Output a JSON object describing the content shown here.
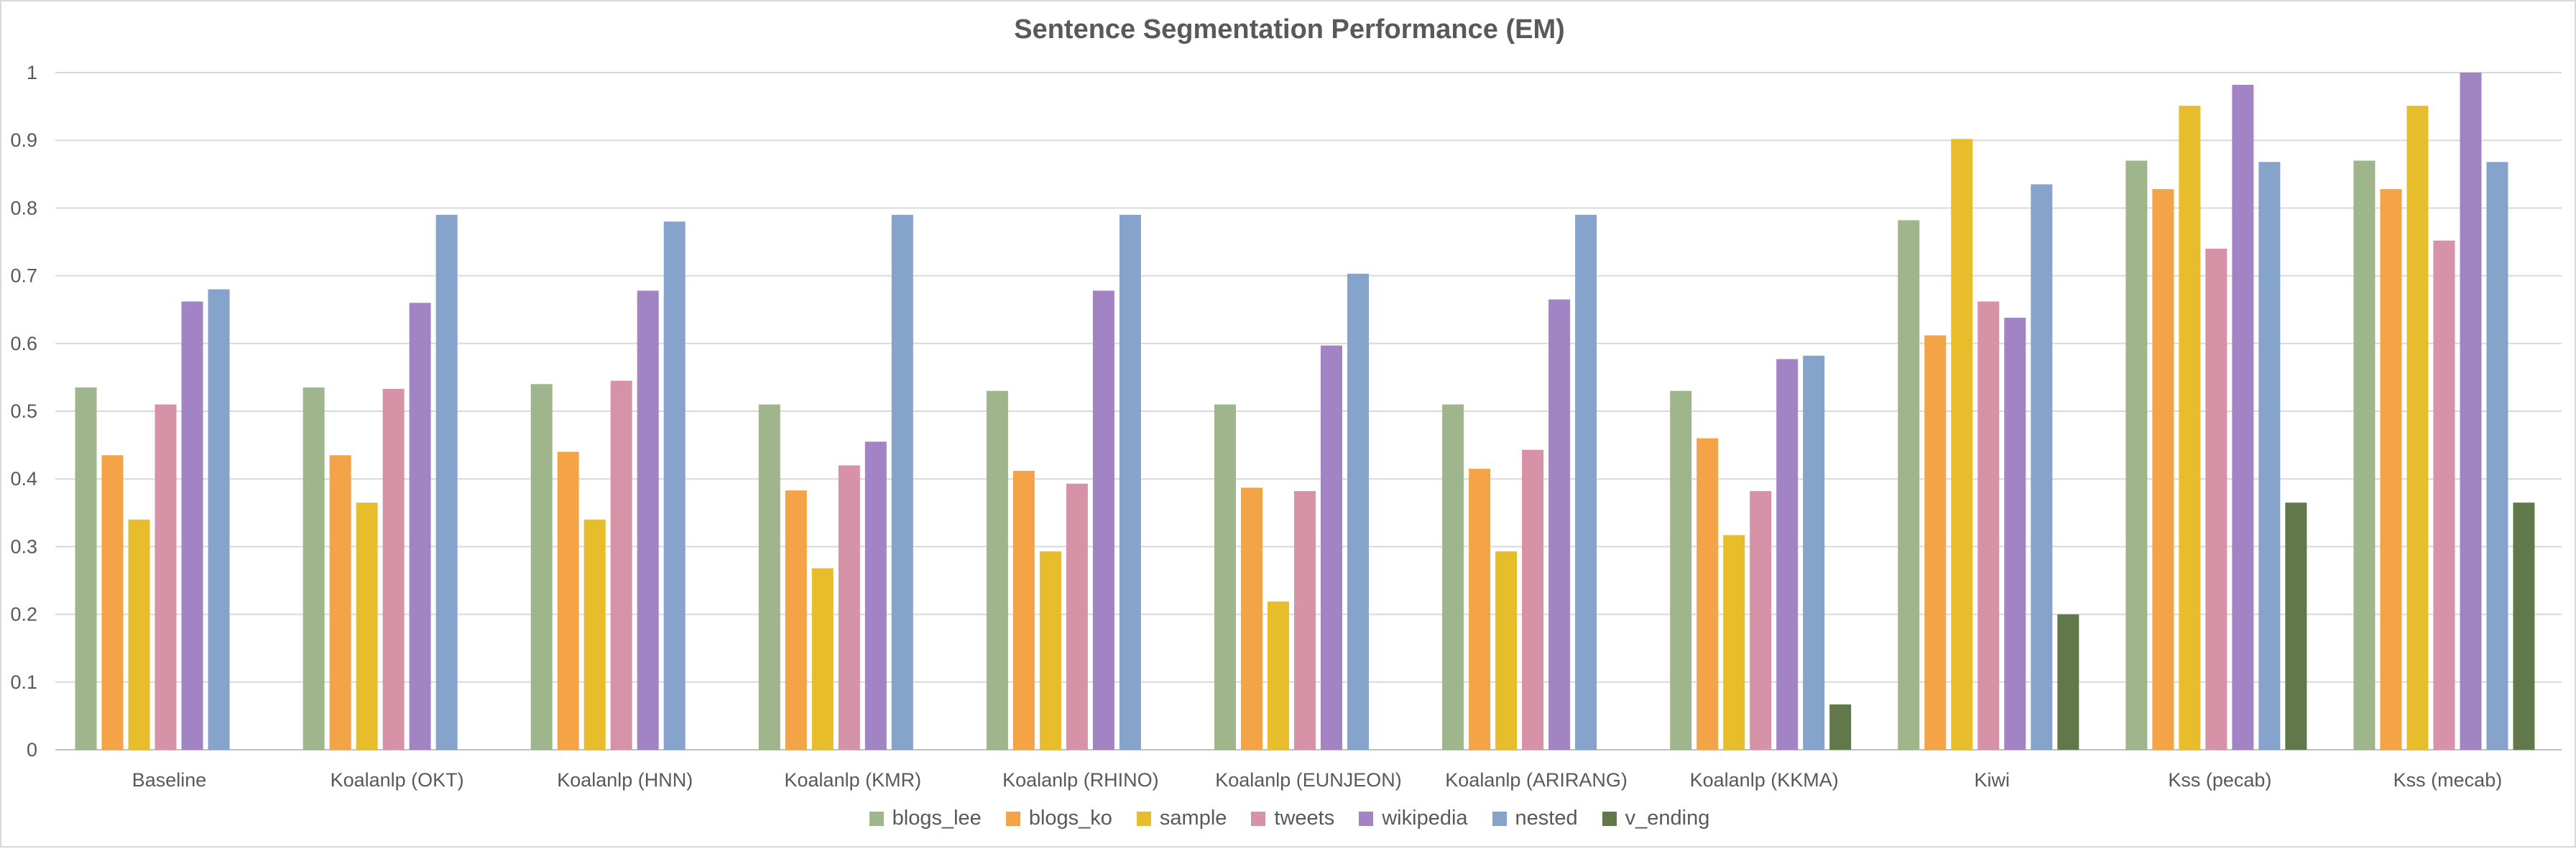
{
  "chart_data": {
    "type": "bar",
    "title": "Sentence Segmentation Performance (EM)",
    "xlabel": "",
    "ylabel": "",
    "ylim": [
      0,
      1
    ],
    "yticks": [
      "0",
      "0.1",
      "0.2",
      "0.3",
      "0.4",
      "0.5",
      "0.6",
      "0.7",
      "0.8",
      "0.9",
      "1"
    ],
    "grid": true,
    "legend": "bottom",
    "categories": [
      "Baseline",
      "Koalanlp (OKT)",
      "Koalanlp (HNN)",
      "Koalanlp (KMR)",
      "Koalanlp (RHINO)",
      "Koalanlp (EUNJEON)",
      "Koalanlp (ARIRANG)",
      "Koalanlp (KKMA)",
      "Kiwi",
      "Kss (pecab)",
      "Kss (mecab)"
    ],
    "series": [
      {
        "name": "blogs_lee",
        "color": "#9fb58c",
        "values": [
          0.535,
          0.535,
          0.54,
          0.51,
          0.53,
          0.51,
          0.51,
          0.53,
          0.782,
          0.87,
          0.87
        ]
      },
      {
        "name": "blogs_ko",
        "color": "#f4a446",
        "values": [
          0.435,
          0.435,
          0.44,
          0.383,
          0.412,
          0.387,
          0.415,
          0.46,
          0.612,
          0.828,
          0.828
        ]
      },
      {
        "name": "sample",
        "color": "#e7bd2b",
        "values": [
          0.34,
          0.365,
          0.34,
          0.268,
          0.293,
          0.219,
          0.293,
          0.317,
          0.902,
          0.951,
          0.951
        ]
      },
      {
        "name": "tweets",
        "color": "#d692a7",
        "values": [
          0.51,
          0.533,
          0.545,
          0.42,
          0.393,
          0.382,
          0.443,
          0.382,
          0.662,
          0.74,
          0.752
        ]
      },
      {
        "name": "wikipedia",
        "color": "#a284c5",
        "values": [
          0.662,
          0.66,
          0.678,
          0.455,
          0.678,
          0.597,
          0.665,
          0.577,
          0.638,
          0.982,
          1.0
        ]
      },
      {
        "name": "nested",
        "color": "#85a3cb",
        "values": [
          0.68,
          0.79,
          0.78,
          0.79,
          0.79,
          0.703,
          0.79,
          0.582,
          0.835,
          0.868,
          0.868
        ]
      },
      {
        "name": "v_ending",
        "color": "#61794a",
        "values": [
          null,
          null,
          null,
          null,
          null,
          null,
          null,
          0.067,
          0.2,
          0.365,
          0.365
        ]
      }
    ]
  }
}
